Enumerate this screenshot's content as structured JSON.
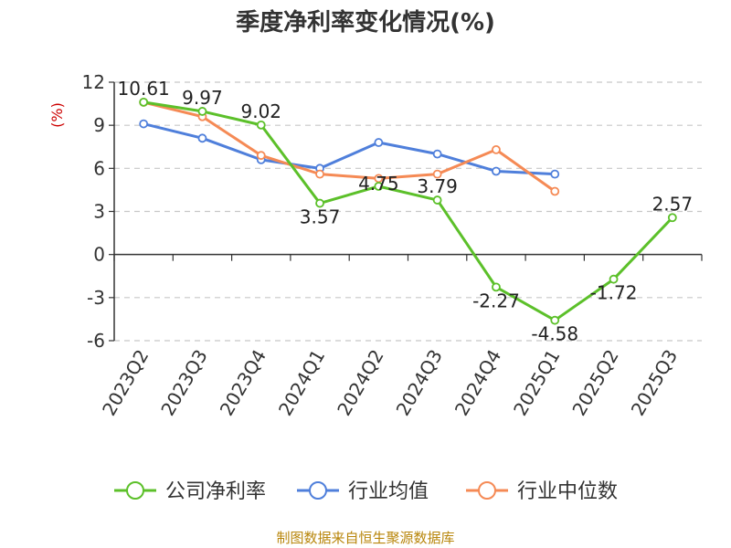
{
  "chart_data": {
    "type": "line",
    "title": "季度净利率变化情况(%)",
    "ylabel": "(%)",
    "xlabel": "",
    "ylim": [
      -6,
      12
    ],
    "yticks": [
      12,
      9,
      6,
      3,
      0,
      -3,
      -6
    ],
    "ytick_labels": [
      "12",
      "9",
      "6",
      "3",
      "0",
      "-3",
      "-6"
    ],
    "grid": true,
    "legend_position": "bottom",
    "categories": [
      "2023Q2",
      "2023Q3",
      "2023Q4",
      "2024Q1",
      "2024Q2",
      "2024Q3",
      "2024Q4",
      "2025Q1",
      "2025Q2",
      "2025Q3"
    ],
    "series": [
      {
        "name": "公司净利率",
        "color": "#5cc02a",
        "values": [
          10.61,
          9.97,
          9.02,
          3.57,
          4.75,
          3.79,
          -2.27,
          -4.58,
          -1.72,
          2.57
        ],
        "labels": [
          "10.61",
          "9.97",
          "9.02",
          "3.57",
          "4.75",
          "3.79",
          "-2.27",
          "-4.58",
          "-1.72",
          "2.57"
        ]
      },
      {
        "name": "行业均值",
        "color": "#4f7fdb",
        "values": [
          9.1,
          8.1,
          6.6,
          6.0,
          7.8,
          7.0,
          5.8,
          5.6,
          null,
          null
        ]
      },
      {
        "name": "行业中位数",
        "color": "#f58a55",
        "values": [
          10.6,
          9.6,
          6.9,
          5.6,
          5.3,
          5.6,
          7.3,
          4.4,
          null,
          null
        ]
      }
    ],
    "source": "制图数据来自恒生聚源数据库"
  }
}
